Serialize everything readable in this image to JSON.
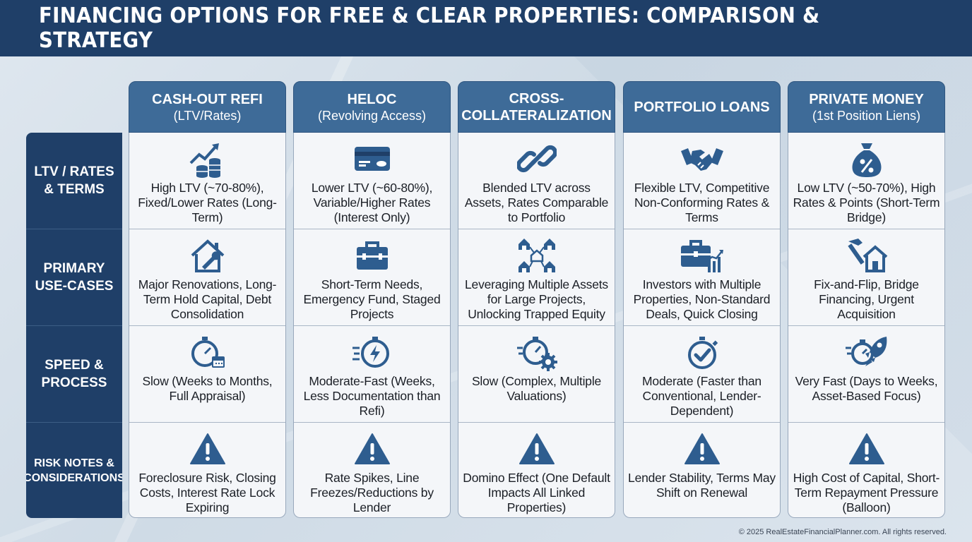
{
  "title": "FINANCING OPTIONS FOR FREE & CLEAR PROPERTIES: COMPARISON & STRATEGY",
  "row_labels": [
    "LTV / RATES\n& TERMS",
    "PRIMARY\nUSE-CASES",
    "SPEED &\nPROCESS",
    "RISK NOTES &\nCONSIDERATIONS"
  ],
  "columns": [
    {
      "title": "CASH-OUT REFI",
      "subtitle": "(LTV/Rates)",
      "cells": [
        {
          "icon": "growth-coins-icon",
          "text": "High LTV (~70-80%), Fixed/Lower Rates (Long-Term)"
        },
        {
          "icon": "house-wrench-icon",
          "text": "Major Renovations, Long-Term Hold Capital, Debt Consolidation"
        },
        {
          "icon": "stopwatch-calendar-icon",
          "text": "Slow (Weeks to Months, Full Appraisal)"
        },
        {
          "icon": "warning-icon",
          "text": "Foreclosure Risk, Closing Costs, Interest Rate Lock Expiring"
        }
      ]
    },
    {
      "title": "HELOC",
      "subtitle": "(Revolving Access)",
      "cells": [
        {
          "icon": "credit-card-icon",
          "text": "Lower LTV (~60-80%), Variable/Higher Rates (Interest Only)"
        },
        {
          "icon": "toolbox-icon",
          "text": "Short-Term Needs, Emergency Fund, Staged Projects"
        },
        {
          "icon": "stopwatch-bolt-icon",
          "text": "Moderate-Fast (Weeks, Less Documentation than Refi)"
        },
        {
          "icon": "warning-icon",
          "text": "Rate Spikes, Line Freezes/Reductions by Lender"
        }
      ]
    },
    {
      "title": "CROSS-\nCOLLATERALIZATION",
      "subtitle": "",
      "cells": [
        {
          "icon": "chain-link-icon",
          "text": "Blended LTV across Assets, Rates Comparable to Portfolio"
        },
        {
          "icon": "house-network-icon",
          "text": "Leveraging Multiple Assets for Large Projects, Unlocking Trapped Equity"
        },
        {
          "icon": "stopwatch-gear-icon",
          "text": "Slow (Complex, Multiple Valuations)"
        },
        {
          "icon": "warning-icon",
          "text": "Domino Effect (One Default Impacts All Linked Properties)"
        }
      ]
    },
    {
      "title": "PORTFOLIO LOANS",
      "subtitle": "",
      "cells": [
        {
          "icon": "handshake-icon",
          "text": "Flexible LTV, Competitive Non-Conforming Rates & Terms"
        },
        {
          "icon": "briefcase-chart-icon",
          "text": "Investors with Multiple Properties, Non-Standard Deals, Quick Closing"
        },
        {
          "icon": "stopwatch-check-icon",
          "text": "Moderate (Faster than Conventional, Lender-Dependent)"
        },
        {
          "icon": "warning-icon",
          "text": "Lender Stability, Terms May Shift on Renewal"
        }
      ]
    },
    {
      "title": "PRIVATE MONEY",
      "subtitle": "(1st Position Liens)",
      "cells": [
        {
          "icon": "money-bag-icon",
          "text": "Low LTV (~50-70%), High Rates & Points (Short-Term Bridge)"
        },
        {
          "icon": "hammer-house-icon",
          "text": "Fix-and-Flip, Bridge Financing, Urgent Acquisition"
        },
        {
          "icon": "stopwatch-rocket-icon",
          "text": "Very Fast (Days to Weeks, Asset-Based Focus)"
        },
        {
          "icon": "warning-icon",
          "text": "High Cost of Capital, Short-Term Repayment Pressure (Balloon)"
        }
      ]
    }
  ],
  "footer": "© 2025 RealEstateFinancialPlanner.com. All rights reserved.",
  "colors": {
    "navy": "#1f3f68",
    "header_blue": "#3e6b98",
    "icon_blue": "#2e5d8f"
  }
}
